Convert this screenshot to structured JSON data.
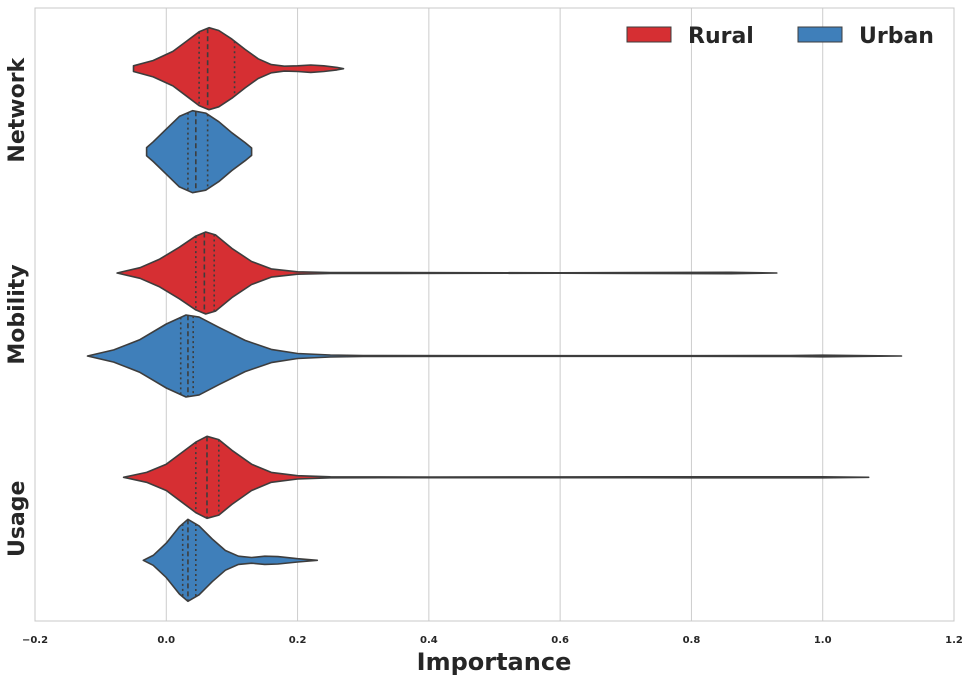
{
  "chart_data": {
    "type": "violin",
    "orientation": "horizontal",
    "xlabel": "Importance",
    "xlim": [
      -0.2,
      1.2
    ],
    "xticks": [
      -0.2,
      0.0,
      0.2,
      0.4,
      0.6,
      0.8,
      1.0,
      1.2
    ],
    "xtick_labels": [
      "−0.2",
      "0.0",
      "0.2",
      "0.4",
      "0.6",
      "0.8",
      "1.0",
      "1.2"
    ],
    "grid": true,
    "inner": "quartile",
    "categories": [
      "Network",
      "Mobility",
      "Usage"
    ],
    "legend": {
      "placement": "top-right",
      "ncol": 2
    },
    "series": [
      {
        "name": "Rural",
        "color": "#d62f33",
        "violins": [
          {
            "category": "Network",
            "min": -0.05,
            "max": 0.27,
            "q1": 0.05,
            "median": 0.063,
            "q3": 0.104,
            "profile": [
              [
                -0.05,
                0.07
              ],
              [
                -0.02,
                0.2
              ],
              [
                0.01,
                0.42
              ],
              [
                0.03,
                0.66
              ],
              [
                0.05,
                0.9
              ],
              [
                0.065,
                1.0
              ],
              [
                0.08,
                0.93
              ],
              [
                0.1,
                0.72
              ],
              [
                0.12,
                0.47
              ],
              [
                0.14,
                0.24
              ],
              [
                0.16,
                0.1
              ],
              [
                0.18,
                0.06
              ],
              [
                0.2,
                0.07
              ],
              [
                0.22,
                0.09
              ],
              [
                0.24,
                0.07
              ],
              [
                0.26,
                0.03
              ],
              [
                0.27,
                0.0
              ]
            ]
          },
          {
            "category": "Mobility",
            "min": -0.075,
            "max": 0.93,
            "q1": 0.045,
            "median": 0.058,
            "q3": 0.073,
            "profile": [
              [
                -0.075,
                0.0
              ],
              [
                -0.04,
                0.13
              ],
              [
                -0.01,
                0.34
              ],
              [
                0.02,
                0.63
              ],
              [
                0.045,
                0.9
              ],
              [
                0.06,
                1.0
              ],
              [
                0.075,
                0.93
              ],
              [
                0.1,
                0.6
              ],
              [
                0.13,
                0.28
              ],
              [
                0.16,
                0.1
              ],
              [
                0.2,
                0.03
              ],
              [
                0.25,
                0.012
              ],
              [
                0.35,
                0.01
              ],
              [
                0.6,
                0.006
              ],
              [
                0.72,
                0.012
              ],
              [
                0.86,
                0.016
              ],
              [
                0.93,
                0.0
              ]
            ]
          },
          {
            "category": "Usage",
            "min": -0.065,
            "max": 1.07,
            "q1": 0.045,
            "median": 0.062,
            "q3": 0.08,
            "profile": [
              [
                -0.065,
                0.0
              ],
              [
                -0.03,
                0.12
              ],
              [
                0.0,
                0.32
              ],
              [
                0.02,
                0.56
              ],
              [
                0.045,
                0.86
              ],
              [
                0.062,
                1.0
              ],
              [
                0.08,
                0.92
              ],
              [
                0.1,
                0.66
              ],
              [
                0.13,
                0.32
              ],
              [
                0.16,
                0.12
              ],
              [
                0.2,
                0.04
              ],
              [
                0.25,
                0.012
              ],
              [
                0.4,
                0.008
              ],
              [
                0.6,
                0.01
              ],
              [
                0.8,
                0.012
              ],
              [
                1.0,
                0.012
              ],
              [
                1.07,
                0.0
              ]
            ]
          }
        ]
      },
      {
        "name": "Urban",
        "color": "#3f7fba",
        "violins": [
          {
            "category": "Network",
            "min": -0.03,
            "max": 0.13,
            "q1": 0.033,
            "median": 0.045,
            "q3": 0.063,
            "profile": [
              [
                -0.03,
                0.1
              ],
              [
                -0.02,
                0.24
              ],
              [
                0.0,
                0.55
              ],
              [
                0.02,
                0.86
              ],
              [
                0.04,
                1.0
              ],
              [
                0.06,
                0.94
              ],
              [
                0.08,
                0.73
              ],
              [
                0.1,
                0.46
              ],
              [
                0.12,
                0.22
              ],
              [
                0.13,
                0.09
              ]
            ]
          },
          {
            "category": "Mobility",
            "min": -0.12,
            "max": 1.12,
            "q1": 0.022,
            "median": 0.033,
            "q3": 0.041,
            "profile": [
              [
                -0.12,
                0.0
              ],
              [
                -0.08,
                0.15
              ],
              [
                -0.04,
                0.4
              ],
              [
                0.0,
                0.78
              ],
              [
                0.03,
                1.0
              ],
              [
                0.05,
                0.95
              ],
              [
                0.08,
                0.7
              ],
              [
                0.12,
                0.38
              ],
              [
                0.16,
                0.16
              ],
              [
                0.2,
                0.06
              ],
              [
                0.25,
                0.025
              ],
              [
                0.3,
                0.012
              ],
              [
                0.5,
                0.008
              ],
              [
                0.8,
                0.008
              ],
              [
                0.95,
                0.012
              ],
              [
                1.0,
                0.02
              ],
              [
                1.05,
                0.012
              ],
              [
                1.12,
                0.0
              ]
            ]
          },
          {
            "category": "Usage",
            "min": -0.035,
            "max": 0.23,
            "q1": 0.025,
            "median": 0.033,
            "q3": 0.045,
            "profile": [
              [
                -0.035,
                0.0
              ],
              [
                -0.02,
                0.12
              ],
              [
                0.0,
                0.42
              ],
              [
                0.02,
                0.82
              ],
              [
                0.033,
                1.0
              ],
              [
                0.05,
                0.84
              ],
              [
                0.07,
                0.52
              ],
              [
                0.09,
                0.24
              ],
              [
                0.11,
                0.1
              ],
              [
                0.13,
                0.07
              ],
              [
                0.15,
                0.1
              ],
              [
                0.17,
                0.09
              ],
              [
                0.2,
                0.04
              ],
              [
                0.23,
                0.0
              ]
            ]
          }
        ]
      }
    ]
  }
}
